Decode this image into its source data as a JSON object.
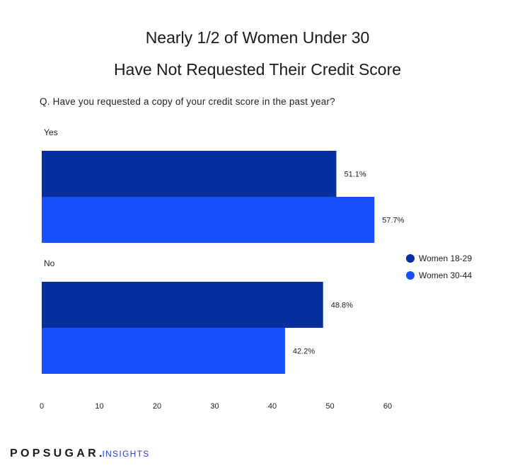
{
  "chart_data": {
    "type": "bar",
    "orientation": "horizontal",
    "title": "Nearly 1/2 of Women Under 30",
    "subtitle": "Have Not Requested Their Credit Score",
    "question": "Q. Have you requested a copy of your credit score in the past year?",
    "categories": [
      "Yes",
      "No"
    ],
    "series": [
      {
        "name": "Women 18-29",
        "color": "#072fa0",
        "values": [
          51.1,
          48.8
        ],
        "labels": [
          "51.1%",
          "48.8%"
        ]
      },
      {
        "name": "Women 30-44",
        "color": "#1550fa",
        "values": [
          57.7,
          42.2
        ],
        "labels": [
          "57.7%",
          "42.2%"
        ]
      }
    ],
    "xlim": [
      0,
      60
    ],
    "xticks": [
      "0",
      "10",
      "20",
      "30",
      "40",
      "50",
      "60"
    ],
    "grid": false,
    "legend_position": "right"
  },
  "brand": {
    "name": "POPSUGAR",
    "dot": ".",
    "suffix": "INSIGHTS"
  }
}
